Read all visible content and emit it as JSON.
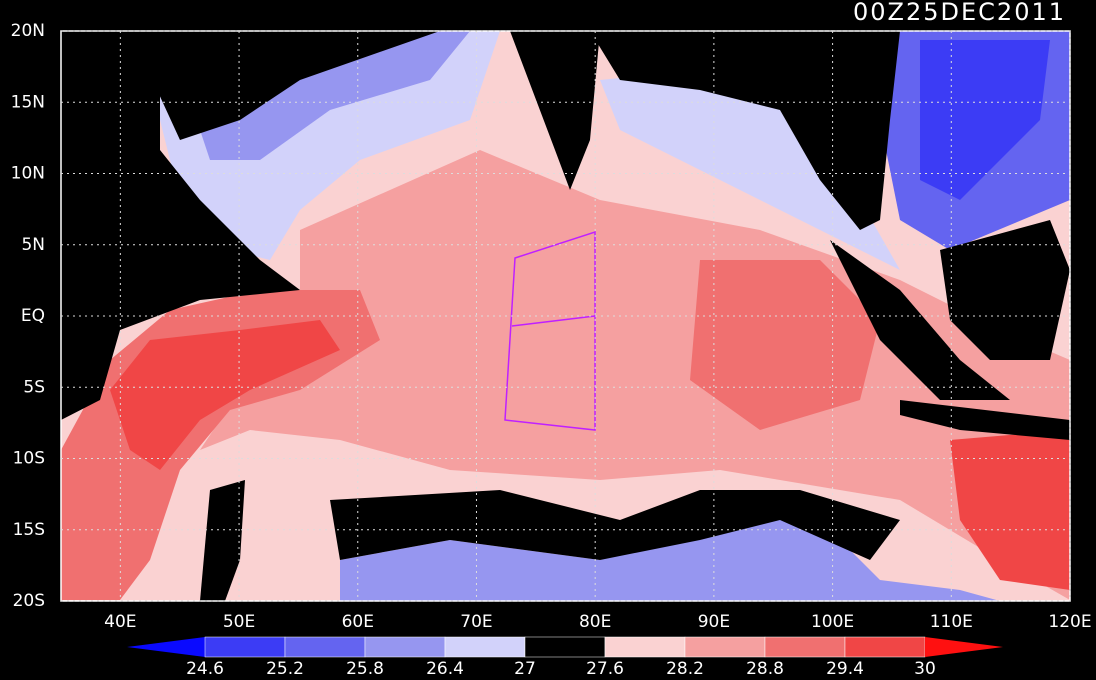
{
  "map": {
    "title": "00Z25DEC2011",
    "lon_range": [
      35,
      120
    ],
    "lat_range": [
      -20,
      20
    ],
    "lon_ticks": [
      {
        "value": 40,
        "label": "40E"
      },
      {
        "value": 50,
        "label": "50E"
      },
      {
        "value": 60,
        "label": "60E"
      },
      {
        "value": 70,
        "label": "70E"
      },
      {
        "value": 80,
        "label": "80E"
      },
      {
        "value": 90,
        "label": "90E"
      },
      {
        "value": 100,
        "label": "100E"
      },
      {
        "value": 110,
        "label": "110E"
      },
      {
        "value": 120,
        "label": "120E"
      }
    ],
    "lat_ticks": [
      {
        "value": 20,
        "label": "20N"
      },
      {
        "value": 15,
        "label": "15N"
      },
      {
        "value": 10,
        "label": "10N"
      },
      {
        "value": 5,
        "label": "5N"
      },
      {
        "value": 0,
        "label": "EQ"
      },
      {
        "value": -5,
        "label": "5S"
      },
      {
        "value": -10,
        "label": "10S"
      },
      {
        "value": -15,
        "label": "15S"
      },
      {
        "value": -20,
        "label": "20S"
      }
    ],
    "grid": true,
    "colorbar": {
      "levels": [
        24.6,
        25.2,
        25.8,
        26.4,
        27,
        27.6,
        28.2,
        28.8,
        29.4,
        30
      ],
      "colors": [
        "#0a0aff",
        "#3c3cf5",
        "#6464f0",
        "#9696f0",
        "#d2d2fa",
        "#000000",
        "#fad2d2",
        "#f5a0a0",
        "#f07070",
        "#f04646",
        "#ff1010"
      ]
    }
  }
}
